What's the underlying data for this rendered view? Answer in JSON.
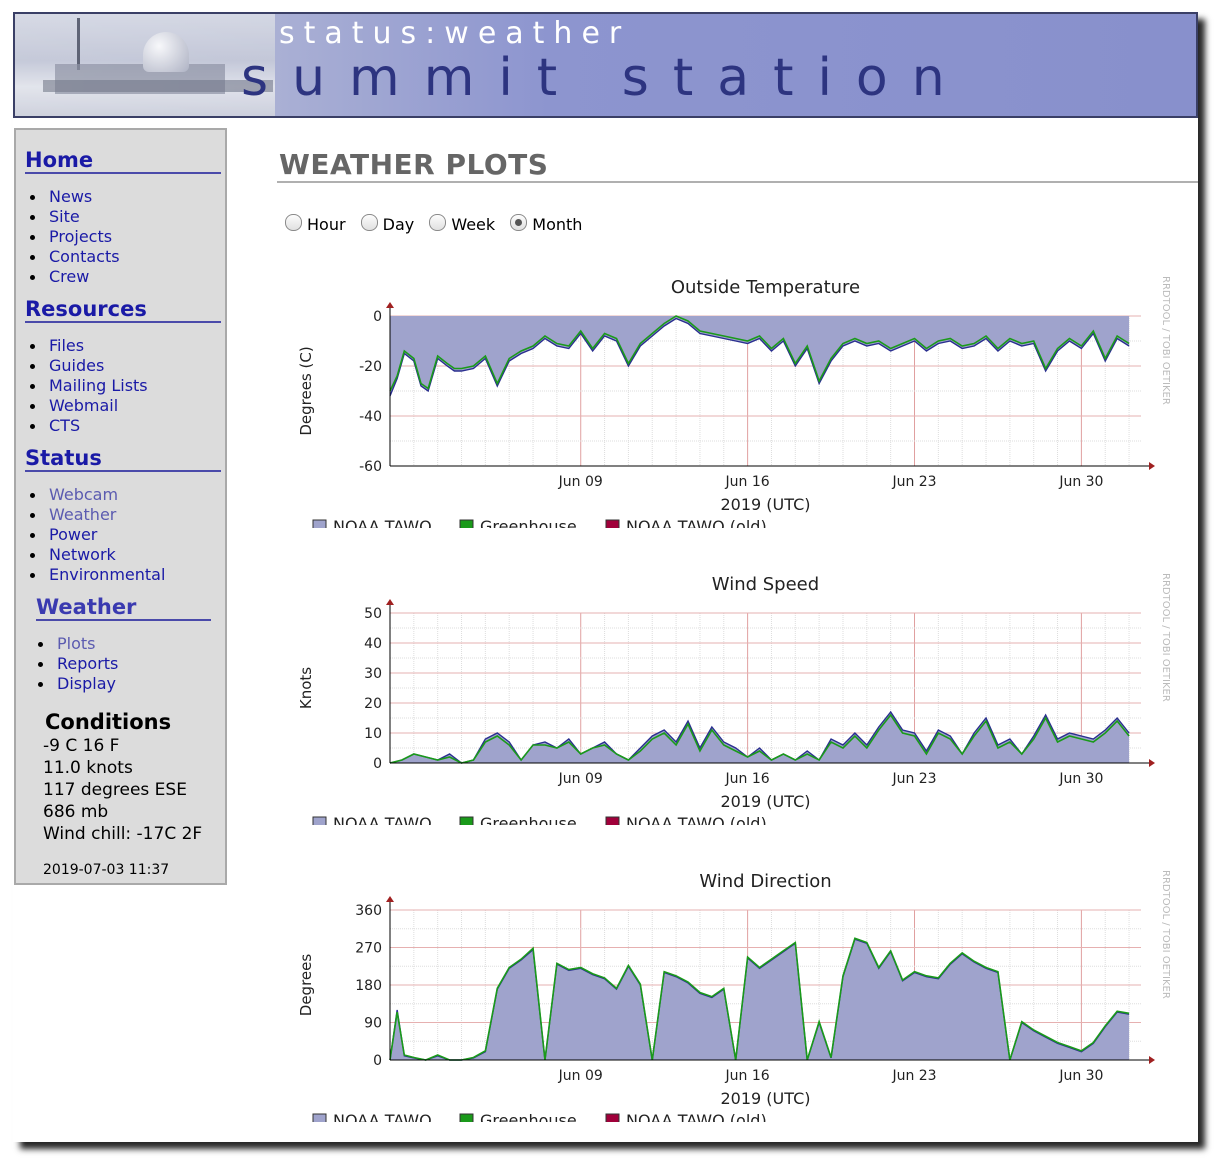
{
  "banner": {
    "subtitle": "status:weather",
    "title": "summit station"
  },
  "sidebar": {
    "sections": [
      {
        "title": "Home",
        "items": [
          {
            "label": "News"
          },
          {
            "label": "Site"
          },
          {
            "label": "Projects"
          },
          {
            "label": "Contacts"
          },
          {
            "label": "Crew"
          }
        ]
      },
      {
        "title": "Resources",
        "items": [
          {
            "label": "Files"
          },
          {
            "label": "Guides"
          },
          {
            "label": "Mailing Lists"
          },
          {
            "label": "Webmail"
          },
          {
            "label": "CTS"
          }
        ]
      },
      {
        "title": "Status",
        "items": [
          {
            "label": "Webcam"
          },
          {
            "label": "Weather"
          },
          {
            "label": "Power"
          },
          {
            "label": "Network"
          },
          {
            "label": "Environmental"
          }
        ]
      },
      {
        "title": "Weather",
        "items": [
          {
            "label": "Plots"
          },
          {
            "label": "Reports"
          },
          {
            "label": "Display"
          }
        ]
      }
    ],
    "conditions": {
      "title": "Conditions",
      "temp": "-9 C 16 F",
      "wind": "11.0 knots",
      "direction": "117 degrees ESE",
      "pressure": "686 mb",
      "windchill": "Wind chill: -17C 2F",
      "timestamp": "2019-07-03 11:37"
    }
  },
  "main": {
    "title": "WEATHER PLOTS",
    "ranges": [
      {
        "label": "Hour",
        "checked": false
      },
      {
        "label": "Day",
        "checked": false
      },
      {
        "label": "Week",
        "checked": false
      },
      {
        "label": "Month",
        "checked": true
      }
    ],
    "watermark": "RRDTOOL / TOBI OETIKER"
  },
  "colors": {
    "area": "#9fa3cc",
    "area_line": "#2a2f8f",
    "greenhouse": "#1a9a1a",
    "old": "#a0003a",
    "axis": "#000000",
    "arrow": "#a02020"
  },
  "chart_data": [
    {
      "type": "area",
      "title": "Outside Temperature",
      "ylabel": "Degrees (C)",
      "xlabel": "2019 (UTC)",
      "ylim": [
        -60,
        0
      ],
      "yticks": [
        0,
        -20,
        -40,
        -60
      ],
      "xlim": [
        0,
        31.5
      ],
      "xticks": [
        {
          "label": "Jun 09",
          "day": 8
        },
        {
          "label": "Jun 16",
          "day": 15
        },
        {
          "label": "Jun 23",
          "day": 22
        },
        {
          "label": "Jun 30",
          "day": 29
        }
      ],
      "legend": [
        "NOAA TAWO",
        "Greenhouse",
        "NOAA TAWO (old)"
      ],
      "series": [
        {
          "name": "NOAA TAWO",
          "x": [
            0,
            0.3,
            0.6,
            1,
            1.3,
            1.6,
            2,
            2.4,
            2.7,
            3,
            3.5,
            4,
            4.5,
            5,
            5.5,
            6,
            6.5,
            7,
            7.5,
            8,
            8.5,
            9,
            9.5,
            10,
            10.5,
            11,
            11.5,
            12,
            12.5,
            13,
            13.5,
            14,
            14.5,
            15,
            15.5,
            16,
            16.5,
            17,
            17.5,
            18,
            18.5,
            19,
            19.5,
            20,
            20.5,
            21,
            21.5,
            22,
            22.5,
            23,
            23.5,
            24,
            24.5,
            25,
            25.5,
            26,
            26.5,
            27,
            27.5,
            28,
            28.5,
            29,
            29.5,
            30,
            30.5,
            31
          ],
          "y": [
            -32,
            -25,
            -15,
            -18,
            -28,
            -30,
            -17,
            -20,
            -22,
            -22,
            -21,
            -17,
            -28,
            -18,
            -15,
            -13,
            -9,
            -12,
            -13,
            -7,
            -14,
            -8,
            -10,
            -20,
            -12,
            -8,
            -4,
            -1,
            -3,
            -7,
            -8,
            -9,
            -10,
            -11,
            -9,
            -14,
            -10,
            -20,
            -13,
            -27,
            -18,
            -12,
            -10,
            -12,
            -11,
            -14,
            -12,
            -10,
            -14,
            -11,
            -10,
            -13,
            -12,
            -9,
            -14,
            -10,
            -12,
            -11,
            -22,
            -14,
            -10,
            -13,
            -7,
            -18,
            -9,
            -12
          ],
          "greenhouse": [
            -30,
            -24,
            -14,
            -17,
            -27,
            -29,
            -16,
            -19,
            -21,
            -21,
            -20,
            -16,
            -27,
            -17,
            -14,
            -12,
            -8,
            -11,
            -12,
            -6,
            -13,
            -7,
            -9,
            -19,
            -11,
            -7,
            -3,
            0,
            -2,
            -6,
            -7,
            -8,
            -9,
            -10,
            -8,
            -13,
            -9,
            -19,
            -12,
            -26,
            -17,
            -11,
            -9,
            -11,
            -10,
            -13,
            -11,
            -9,
            -13,
            -10,
            -9,
            -12,
            -11,
            -8,
            -13,
            -9,
            -11,
            -10,
            -21,
            -13,
            -9,
            -12,
            -6,
            -17,
            -8,
            -11
          ]
        }
      ]
    },
    {
      "type": "area",
      "title": "Wind Speed",
      "ylabel": "Knots",
      "xlabel": "2019 (UTC)",
      "ylim": [
        0,
        50
      ],
      "yticks": [
        50,
        40,
        30,
        20,
        10,
        0
      ],
      "xlim": [
        0,
        31.5
      ],
      "xticks": [
        {
          "label": "Jun 09",
          "day": 8
        },
        {
          "label": "Jun 16",
          "day": 15
        },
        {
          "label": "Jun 23",
          "day": 22
        },
        {
          "label": "Jun 30",
          "day": 29
        }
      ],
      "legend": [
        "NOAA TAWO",
        "Greenhouse",
        "NOAA TAWO (old)"
      ],
      "series": [
        {
          "name": "NOAA TAWO",
          "x": [
            0,
            0.5,
            1,
            1.5,
            2,
            2.5,
            3,
            3.5,
            4,
            4.5,
            5,
            5.5,
            6,
            6.5,
            7,
            7.5,
            8,
            8.5,
            9,
            9.5,
            10,
            10.5,
            11,
            11.5,
            12,
            12.5,
            13,
            13.5,
            14,
            14.5,
            15,
            15.5,
            16,
            16.5,
            17,
            17.5,
            18,
            18.5,
            19,
            19.5,
            20,
            20.5,
            21,
            21.5,
            22,
            22.5,
            23,
            23.5,
            24,
            24.5,
            25,
            25.5,
            26,
            26.5,
            27,
            27.5,
            28,
            28.5,
            29,
            29.5,
            30,
            30.5,
            31
          ],
          "y": [
            0,
            1,
            3,
            2,
            1,
            3,
            0,
            1,
            8,
            10,
            7,
            1,
            6,
            7,
            5,
            8,
            3,
            5,
            7,
            3,
            1,
            5,
            9,
            11,
            7,
            14,
            5,
            12,
            7,
            5,
            2,
            5,
            1,
            3,
            1,
            4,
            1,
            8,
            6,
            10,
            6,
            12,
            17,
            11,
            10,
            4,
            11,
            9,
            3,
            10,
            15,
            6,
            8,
            3,
            9,
            16,
            8,
            10,
            9,
            8,
            11,
            15,
            10
          ],
          "greenhouse": [
            0,
            1,
            3,
            2,
            1,
            2,
            0,
            1,
            7,
            9,
            6,
            1,
            6,
            6,
            5,
            7,
            3,
            5,
            6,
            3,
            1,
            4,
            8,
            10,
            6,
            13,
            4,
            11,
            6,
            4,
            2,
            4,
            1,
            3,
            1,
            3,
            1,
            7,
            5,
            9,
            5,
            11,
            16,
            10,
            9,
            3,
            10,
            8,
            3,
            9,
            14,
            5,
            7,
            3,
            8,
            15,
            7,
            9,
            8,
            7,
            10,
            14,
            9
          ]
        }
      ]
    },
    {
      "type": "area",
      "title": "Wind Direction",
      "ylabel": "Degrees",
      "xlabel": "2019 (UTC)",
      "ylim": [
        0,
        360
      ],
      "yticks": [
        360,
        270,
        180,
        90,
        0
      ],
      "xlim": [
        0,
        31.5
      ],
      "xticks": [
        {
          "label": "Jun 09",
          "day": 8
        },
        {
          "label": "Jun 16",
          "day": 15
        },
        {
          "label": "Jun 23",
          "day": 22
        },
        {
          "label": "Jun 30",
          "day": 29
        }
      ],
      "legend": [
        "NOAA TAWO",
        "Greenhouse",
        "NOAA TAWO (old)"
      ],
      "series": [
        {
          "name": "NOAA TAWO",
          "x": [
            0,
            0.3,
            0.6,
            1,
            1.5,
            2,
            2.5,
            3,
            3.5,
            4,
            4.5,
            5,
            5.5,
            6,
            6.5,
            7,
            7.5,
            8,
            8.5,
            9,
            9.5,
            10,
            10.5,
            11,
            11.5,
            12,
            12.5,
            13,
            13.5,
            14,
            14.5,
            15,
            15.5,
            16,
            16.5,
            17,
            17.5,
            18,
            18.5,
            19,
            19.5,
            20,
            20.5,
            21,
            21.5,
            22,
            22.5,
            23,
            23.5,
            24,
            24.5,
            25,
            25.5,
            26,
            26.5,
            27,
            27.5,
            28,
            28.5,
            29,
            29.5,
            30,
            30.5,
            31
          ],
          "y": [
            0,
            120,
            10,
            5,
            0,
            10,
            0,
            0,
            5,
            20,
            170,
            220,
            240,
            265,
            0,
            230,
            215,
            220,
            205,
            195,
            170,
            225,
            180,
            0,
            210,
            200,
            185,
            160,
            150,
            170,
            0,
            245,
            220,
            240,
            260,
            280,
            0,
            90,
            5,
            200,
            290,
            280,
            220,
            260,
            190,
            210,
            200,
            195,
            230,
            255,
            235,
            220,
            210,
            0,
            90,
            70,
            55,
            40,
            30,
            20,
            40,
            80,
            115,
            110
          ],
          "greenhouse": [
            0,
            115,
            12,
            6,
            0,
            12,
            0,
            0,
            6,
            22,
            172,
            222,
            242,
            268,
            0,
            232,
            217,
            222,
            207,
            197,
            172,
            227,
            182,
            0,
            212,
            202,
            187,
            162,
            152,
            172,
            0,
            247,
            222,
            242,
            262,
            282,
            0,
            92,
            6,
            202,
            292,
            282,
            222,
            262,
            192,
            212,
            202,
            197,
            232,
            257,
            237,
            222,
            212,
            0,
            92,
            72,
            57,
            42,
            32,
            22,
            42,
            82,
            117,
            112
          ]
        }
      ]
    }
  ]
}
